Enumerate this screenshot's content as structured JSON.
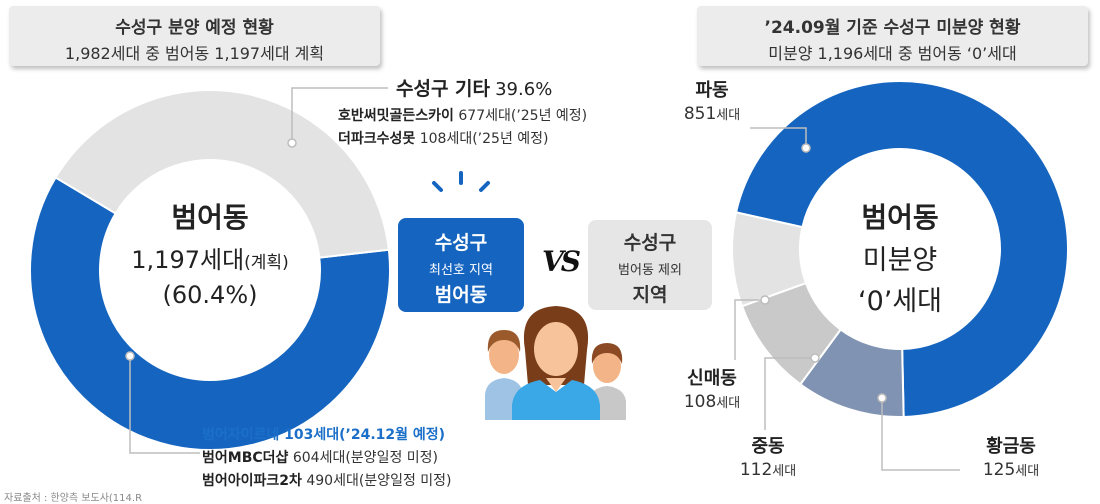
{
  "left_header": {
    "title": "수성구 분양 예정 현황",
    "subtitle": "1,982세대 중 범어동 1,197세대 계획"
  },
  "right_header": {
    "title": "’24.09월 기준 수성구 미분양 현황",
    "subtitle": "미분양 1,196세대 중 범어동 ‘0’세대"
  },
  "left_center": {
    "line1": "범어동",
    "line2": "1,197세대",
    "line2_suffix": "(계획)",
    "line3": "(60.4%)"
  },
  "left_other": {
    "name": "수성구 기타",
    "pct": "39.6%",
    "items": [
      {
        "name": "호반써밋골든스카이",
        "value": "677세대(’25년 예정)"
      },
      {
        "name": "더파크수성못",
        "value": "108세대(’25년 예정)"
      }
    ]
  },
  "left_beomeo_list": [
    {
      "name": "범어자이르네 103세대(’24.12월 예정)",
      "value": "",
      "highlight": true
    },
    {
      "name": "범어MBC더샵",
      "value": "604세대(분양일정 미정)",
      "highlight": false
    },
    {
      "name": "범어아이파크2차",
      "value": "490세대(분양일정 미정)",
      "highlight": false
    }
  ],
  "vs": {
    "left_box": {
      "line1": "수성구",
      "line2": "최선호 지역",
      "line3": "범어동"
    },
    "right_box": {
      "line1": "수성구",
      "line2": "범어동 제외",
      "line3": "지역"
    },
    "vs_text": "VS"
  },
  "right_center": {
    "line1": "범어동",
    "line2": "미분양",
    "line3": "‘0’세대"
  },
  "right_labels": {
    "padong": {
      "name": "파동",
      "value": "851",
      "unit": "세대"
    },
    "sinmae": {
      "name": "신매동",
      "value": "108",
      "unit": "세대"
    },
    "jungdong": {
      "name": "중동",
      "value": "112",
      "unit": "세대"
    },
    "hwanggeum": {
      "name": "황금동",
      "value": "125",
      "unit": "세대"
    }
  },
  "footer": {
    "source": "자료출처 : 한양측 보도사(114.R"
  },
  "colors": {
    "blue": "#1565c0",
    "light_gray": "#e3e3e3",
    "mid_gray": "#c9c9c9",
    "slate": "#8193b2",
    "line_gray": "#bdbdbd",
    "vs_blue": "#1565c0",
    "vs_gray": "#e6e6e6"
  },
  "chart_data": [
    {
      "type": "pie",
      "donut": true,
      "categories": [
        "범어동",
        "수성구 기타"
      ],
      "values": [
        1197,
        785
      ],
      "percent": [
        60.4,
        39.6
      ]
    },
    {
      "type": "pie",
      "donut": true,
      "categories": [
        "파동",
        "황금동",
        "중동",
        "신매동"
      ],
      "values": [
        851,
        125,
        112,
        108
      ]
    }
  ]
}
